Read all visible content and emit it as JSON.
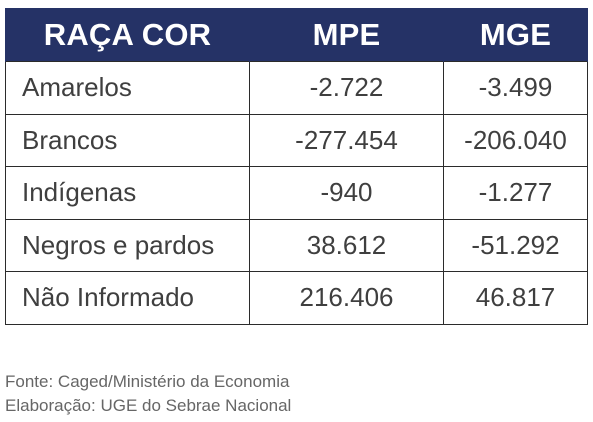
{
  "table": {
    "headers": [
      "RAÇA COR",
      "MPE",
      "MGE"
    ],
    "rows": [
      [
        "Amarelos",
        "-2.722",
        "-3.499"
      ],
      [
        "Brancos",
        "-277.454",
        "-206.040"
      ],
      [
        "Indígenas",
        "-940",
        "-1.277"
      ],
      [
        "Negros e pardos",
        "38.612",
        "-51.292"
      ],
      [
        "Não Informado",
        "216.406",
        "46.817"
      ]
    ]
  },
  "notes": {
    "source": "Fonte: Caged/Ministério da Economia",
    "prepared_by": "Elaboração: UGE do Sebrae Nacional"
  },
  "colors": {
    "header_background": "#253266",
    "header_text": "#ffffff",
    "cell_text": "#3f3f3f"
  }
}
